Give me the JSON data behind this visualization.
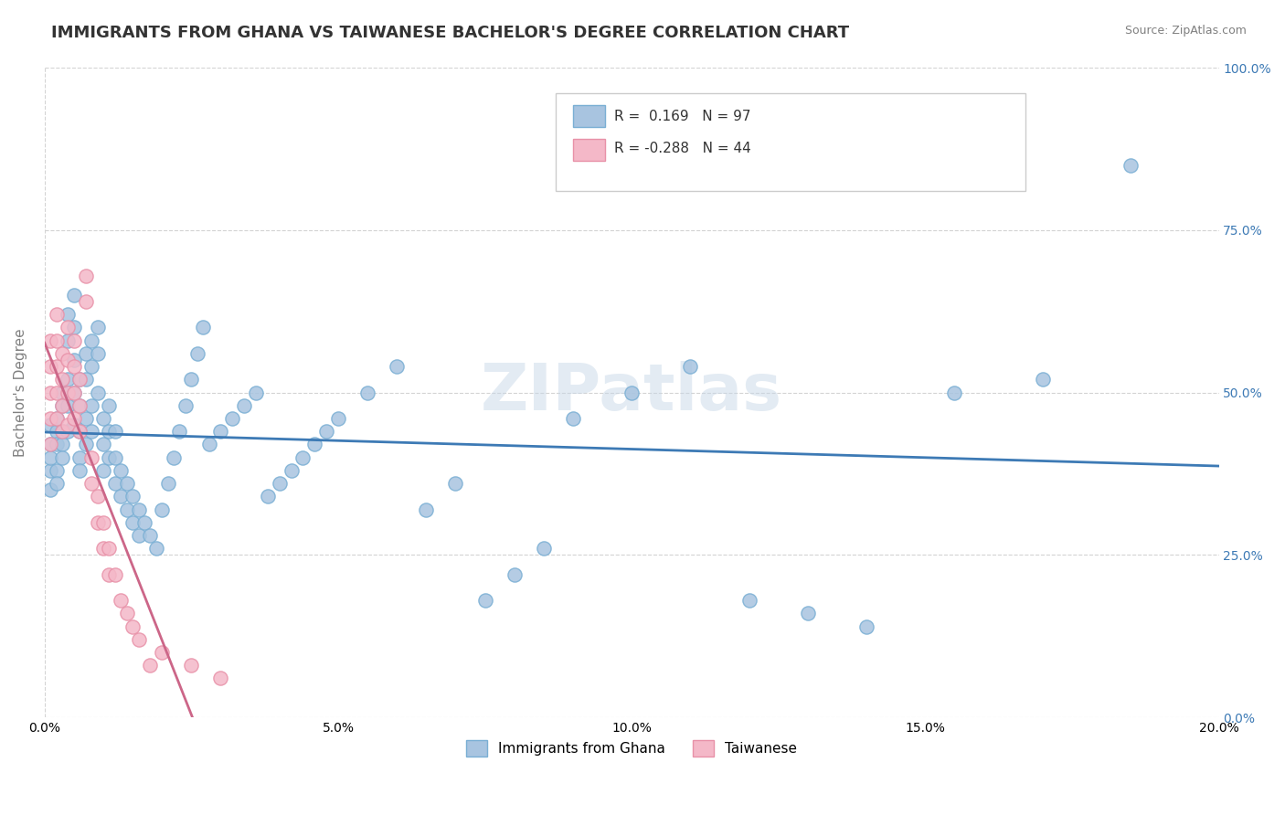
{
  "title": "IMMIGRANTS FROM GHANA VS TAIWANESE BACHELOR'S DEGREE CORRELATION CHART",
  "source_text": "Source: ZipAtlas.com",
  "xlabel": "",
  "ylabel": "Bachelor's Degree",
  "xlim": [
    0.0,
    0.2
  ],
  "ylim": [
    0.0,
    1.0
  ],
  "xticks": [
    0.0,
    0.05,
    0.1,
    0.15,
    0.2
  ],
  "xtick_labels": [
    "0.0%",
    "5.0%",
    "10.0%",
    "15.0%",
    "20.0%"
  ],
  "yticks_right": [
    0.0,
    0.25,
    0.5,
    0.75,
    1.0
  ],
  "ytick_right_labels": [
    "0.0%",
    "25.0%",
    "50.0%",
    "75.0%",
    "100.0%"
  ],
  "blue_color": "#a8c4e0",
  "blue_edge_color": "#7aafd4",
  "pink_color": "#f4b8c8",
  "pink_edge_color": "#e891a8",
  "blue_line_color": "#3d7ab5",
  "pink_line_color": "#cc6688",
  "watermark_text": "ZIPatlas",
  "watermark_color": "#c8d8e8",
  "R_blue": 0.169,
  "N_blue": 97,
  "R_pink": -0.288,
  "N_pink": 44,
  "legend_labels": [
    "Immigrants from Ghana",
    "Taiwanese"
  ],
  "title_fontsize": 13,
  "axis_fontsize": 11,
  "tick_fontsize": 10,
  "blue_scatter_x": [
    0.001,
    0.001,
    0.001,
    0.001,
    0.001,
    0.002,
    0.002,
    0.002,
    0.002,
    0.002,
    0.003,
    0.003,
    0.003,
    0.003,
    0.003,
    0.004,
    0.004,
    0.004,
    0.004,
    0.004,
    0.005,
    0.005,
    0.005,
    0.005,
    0.005,
    0.006,
    0.006,
    0.006,
    0.006,
    0.006,
    0.007,
    0.007,
    0.007,
    0.007,
    0.008,
    0.008,
    0.008,
    0.008,
    0.009,
    0.009,
    0.009,
    0.01,
    0.01,
    0.01,
    0.011,
    0.011,
    0.011,
    0.012,
    0.012,
    0.012,
    0.013,
    0.013,
    0.014,
    0.014,
    0.015,
    0.015,
    0.016,
    0.016,
    0.017,
    0.018,
    0.019,
    0.02,
    0.021,
    0.022,
    0.023,
    0.024,
    0.025,
    0.026,
    0.027,
    0.028,
    0.03,
    0.032,
    0.034,
    0.036,
    0.038,
    0.04,
    0.042,
    0.044,
    0.046,
    0.048,
    0.05,
    0.055,
    0.06,
    0.065,
    0.07,
    0.075,
    0.08,
    0.085,
    0.09,
    0.1,
    0.11,
    0.12,
    0.13,
    0.14,
    0.155,
    0.17,
    0.185
  ],
  "blue_scatter_y": [
    0.42,
    0.38,
    0.45,
    0.35,
    0.4,
    0.44,
    0.38,
    0.42,
    0.46,
    0.36,
    0.5,
    0.48,
    0.42,
    0.4,
    0.44,
    0.62,
    0.58,
    0.52,
    0.48,
    0.44,
    0.65,
    0.6,
    0.55,
    0.5,
    0.45,
    0.52,
    0.48,
    0.44,
    0.4,
    0.38,
    0.56,
    0.52,
    0.46,
    0.42,
    0.58,
    0.54,
    0.48,
    0.44,
    0.6,
    0.56,
    0.5,
    0.38,
    0.42,
    0.46,
    0.4,
    0.44,
    0.48,
    0.36,
    0.4,
    0.44,
    0.34,
    0.38,
    0.32,
    0.36,
    0.3,
    0.34,
    0.28,
    0.32,
    0.3,
    0.28,
    0.26,
    0.32,
    0.36,
    0.4,
    0.44,
    0.48,
    0.52,
    0.56,
    0.6,
    0.42,
    0.44,
    0.46,
    0.48,
    0.5,
    0.34,
    0.36,
    0.38,
    0.4,
    0.42,
    0.44,
    0.46,
    0.5,
    0.54,
    0.32,
    0.36,
    0.18,
    0.22,
    0.26,
    0.46,
    0.5,
    0.54,
    0.18,
    0.16,
    0.14,
    0.5,
    0.52,
    0.85
  ],
  "pink_scatter_x": [
    0.001,
    0.001,
    0.001,
    0.001,
    0.001,
    0.002,
    0.002,
    0.002,
    0.002,
    0.002,
    0.003,
    0.003,
    0.003,
    0.003,
    0.004,
    0.004,
    0.004,
    0.004,
    0.005,
    0.005,
    0.005,
    0.005,
    0.006,
    0.006,
    0.006,
    0.007,
    0.007,
    0.008,
    0.008,
    0.009,
    0.009,
    0.01,
    0.01,
    0.011,
    0.011,
    0.012,
    0.013,
    0.014,
    0.015,
    0.016,
    0.018,
    0.02,
    0.025,
    0.03
  ],
  "pink_scatter_y": [
    0.58,
    0.54,
    0.5,
    0.46,
    0.42,
    0.62,
    0.58,
    0.54,
    0.5,
    0.46,
    0.56,
    0.52,
    0.48,
    0.44,
    0.6,
    0.55,
    0.5,
    0.45,
    0.58,
    0.54,
    0.5,
    0.46,
    0.52,
    0.48,
    0.44,
    0.68,
    0.64,
    0.4,
    0.36,
    0.34,
    0.3,
    0.3,
    0.26,
    0.26,
    0.22,
    0.22,
    0.18,
    0.16,
    0.14,
    0.12,
    0.08,
    0.1,
    0.08,
    0.06
  ]
}
